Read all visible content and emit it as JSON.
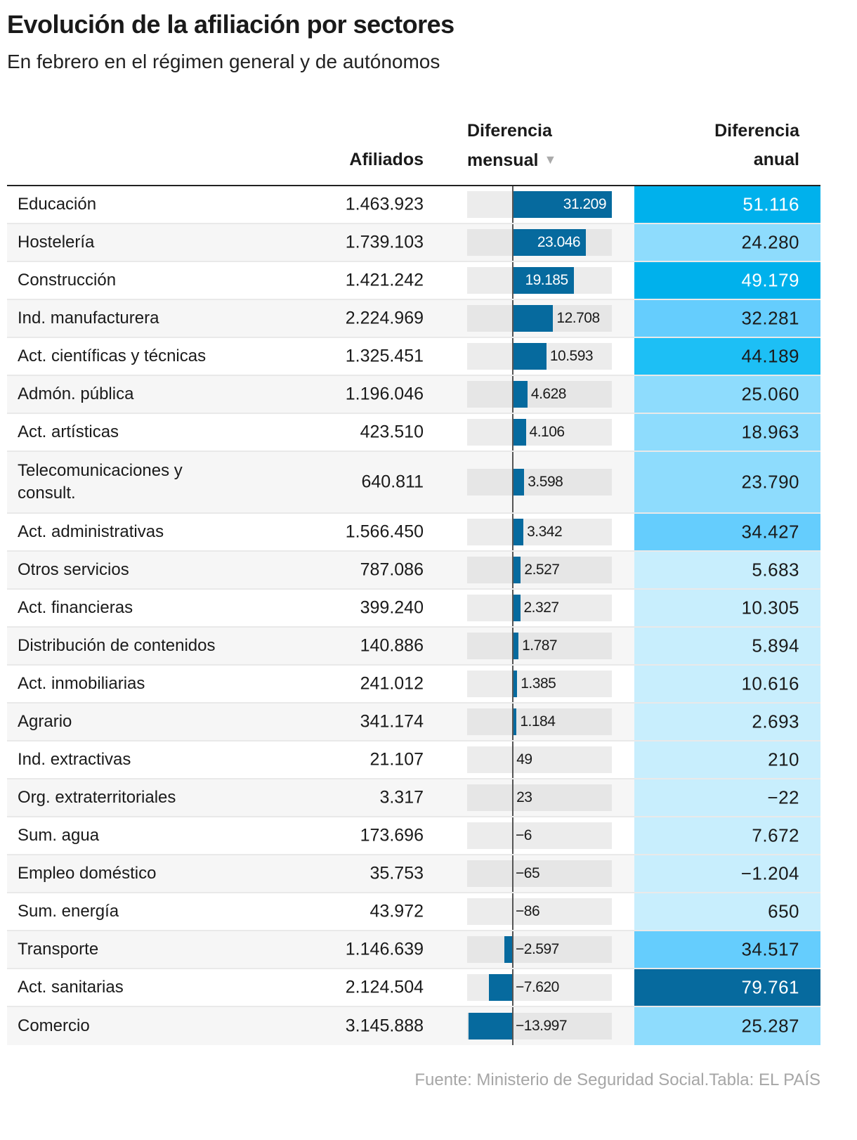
{
  "title": "Evolución de la afiliación por sectores",
  "subtitle": "En febrero en el régimen general y de autónomos",
  "source": "Fuente: Ministerio de Seguridad Social.Tabla: EL PAÍS",
  "chart_data": {
    "type": "table",
    "columns": [
      "",
      "Afiliados",
      "Diferencia mensual",
      "Diferencia anual"
    ],
    "sort_column": "Diferencia mensual",
    "sort_order": "descending",
    "colors": {
      "bar": "#066a9e",
      "bar_bg": "#ececec",
      "anual_scale": [
        "#c8eefd",
        "#8edcfd",
        "#65cdfd",
        "#00b1ec",
        "#066a9e"
      ]
    },
    "rows": [
      {
        "sector": "Educación",
        "afiliados": "1.463.923",
        "mensual": 31209,
        "mensual_label": "31.209",
        "anual": 51116,
        "anual_label": "51.116"
      },
      {
        "sector": "Hostelería",
        "afiliados": "1.739.103",
        "mensual": 23046,
        "mensual_label": "23.046",
        "anual": 24280,
        "anual_label": "24.280"
      },
      {
        "sector": "Construcción",
        "afiliados": "1.421.242",
        "mensual": 19185,
        "mensual_label": "19.185",
        "anual": 49179,
        "anual_label": "49.179"
      },
      {
        "sector": "Ind. manufacturera",
        "afiliados": "2.224.969",
        "mensual": 12708,
        "mensual_label": "12.708",
        "anual": 32281,
        "anual_label": "32.281"
      },
      {
        "sector": "Act. científicas y técnicas",
        "afiliados": "1.325.451",
        "mensual": 10593,
        "mensual_label": "10.593",
        "anual": 44189,
        "anual_label": "44.189"
      },
      {
        "sector": "Admón. pública",
        "afiliados": "1.196.046",
        "mensual": 4628,
        "mensual_label": "4.628",
        "anual": 25060,
        "anual_label": "25.060"
      },
      {
        "sector": "Act. artísticas",
        "afiliados": "423.510",
        "mensual": 4106,
        "mensual_label": "4.106",
        "anual": 18963,
        "anual_label": "18.963"
      },
      {
        "sector": "Telecomunicaciones y consult.",
        "afiliados": "640.811",
        "mensual": 3598,
        "mensual_label": "3.598",
        "anual": 23790,
        "anual_label": "23.790"
      },
      {
        "sector": "Act. administrativas",
        "afiliados": "1.566.450",
        "mensual": 3342,
        "mensual_label": "3.342",
        "anual": 34427,
        "anual_label": "34.427"
      },
      {
        "sector": "Otros servicios",
        "afiliados": "787.086",
        "mensual": 2527,
        "mensual_label": "2.527",
        "anual": 5683,
        "anual_label": "5.683"
      },
      {
        "sector": "Act. financieras",
        "afiliados": "399.240",
        "mensual": 2327,
        "mensual_label": "2.327",
        "anual": 10305,
        "anual_label": "10.305"
      },
      {
        "sector": "Distribución de contenidos",
        "afiliados": "140.886",
        "mensual": 1787,
        "mensual_label": "1.787",
        "anual": 5894,
        "anual_label": "5.894"
      },
      {
        "sector": "Act. inmobiliarias",
        "afiliados": "241.012",
        "mensual": 1385,
        "mensual_label": "1.385",
        "anual": 10616,
        "anual_label": "10.616"
      },
      {
        "sector": "Agrario",
        "afiliados": "341.174",
        "mensual": 1184,
        "mensual_label": "1.184",
        "anual": 2693,
        "anual_label": "2.693"
      },
      {
        "sector": "Ind. extractivas",
        "afiliados": "21.107",
        "mensual": 49,
        "mensual_label": "49",
        "anual": 210,
        "anual_label": "210"
      },
      {
        "sector": "Org. extraterritoriales",
        "afiliados": "3.317",
        "mensual": 23,
        "mensual_label": "23",
        "anual": -22,
        "anual_label": "−22"
      },
      {
        "sector": "Sum. agua",
        "afiliados": "173.696",
        "mensual": -6,
        "mensual_label": "−6",
        "anual": 7672,
        "anual_label": "7.672"
      },
      {
        "sector": "Empleo doméstico",
        "afiliados": "35.753",
        "mensual": -65,
        "mensual_label": "−65",
        "anual": -1204,
        "anual_label": "−1.204"
      },
      {
        "sector": "Sum. energía",
        "afiliados": "43.972",
        "mensual": -86,
        "mensual_label": "−86",
        "anual": 650,
        "anual_label": "650"
      },
      {
        "sector": "Transporte",
        "afiliados": "1.146.639",
        "mensual": -2597,
        "mensual_label": "−2.597",
        "anual": 34517,
        "anual_label": "34.517"
      },
      {
        "sector": "Act. sanitarias",
        "afiliados": "2.124.504",
        "mensual": -7620,
        "mensual_label": "−7.620",
        "anual": 79761,
        "anual_label": "79.761"
      },
      {
        "sector": "Comercio",
        "afiliados": "3.145.888",
        "mensual": -13997,
        "mensual_label": "−13.997",
        "anual": 25287,
        "anual_label": "25.287"
      }
    ]
  }
}
